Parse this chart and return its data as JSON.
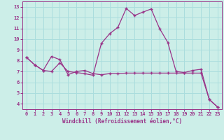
{
  "xlabel": "Windchill (Refroidissement éolien,°C)",
  "background_color": "#cceee8",
  "grid_color": "#aadddd",
  "line_color": "#993388",
  "xlim": [
    -0.5,
    23.5
  ],
  "ylim": [
    3.5,
    13.5
  ],
  "yticks": [
    4,
    5,
    6,
    7,
    8,
    9,
    10,
    11,
    12,
    13
  ],
  "xticks": [
    0,
    1,
    2,
    3,
    4,
    5,
    6,
    7,
    8,
    9,
    10,
    11,
    12,
    13,
    14,
    15,
    16,
    17,
    18,
    19,
    20,
    21,
    22,
    23
  ],
  "line1_x": [
    0,
    1,
    2,
    3,
    4,
    5,
    6,
    7,
    8,
    9,
    10,
    11,
    12,
    13,
    14,
    15,
    16,
    17,
    18,
    19,
    20,
    21,
    22,
    23
  ],
  "line1_y": [
    8.3,
    7.6,
    7.1,
    8.4,
    8.1,
    6.7,
    7.0,
    7.1,
    6.8,
    6.7,
    6.8,
    6.8,
    6.85,
    6.85,
    6.85,
    6.85,
    6.85,
    6.85,
    6.85,
    6.85,
    6.85,
    6.85,
    4.4,
    3.7
  ],
  "line2_x": [
    0,
    1,
    2,
    3,
    4,
    5,
    6,
    7,
    8,
    9,
    10,
    11,
    12,
    13,
    14,
    15,
    16,
    17,
    18,
    19,
    20,
    21,
    22,
    23
  ],
  "line2_y": [
    8.3,
    7.6,
    7.1,
    7.0,
    7.8,
    7.0,
    6.9,
    6.8,
    6.65,
    9.6,
    10.5,
    11.1,
    12.85,
    12.2,
    12.5,
    12.8,
    11.0,
    9.7,
    7.0,
    6.9,
    7.1,
    7.2,
    4.4,
    3.7
  ]
}
